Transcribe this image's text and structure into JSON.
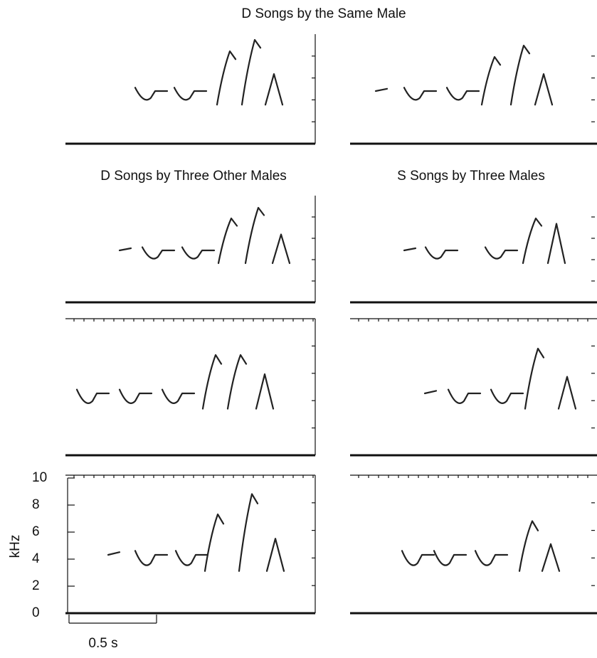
{
  "titles": [
    "D  Songs by the Same Male",
    "D  Songs by Three Other Males",
    "S  Songs by Three Males"
  ],
  "y_axis": {
    "label": "kHz",
    "ylim": [
      0,
      10
    ],
    "ticks": [
      0,
      2,
      4,
      6,
      8,
      10
    ]
  },
  "scale_bar": "0.5 s"
}
